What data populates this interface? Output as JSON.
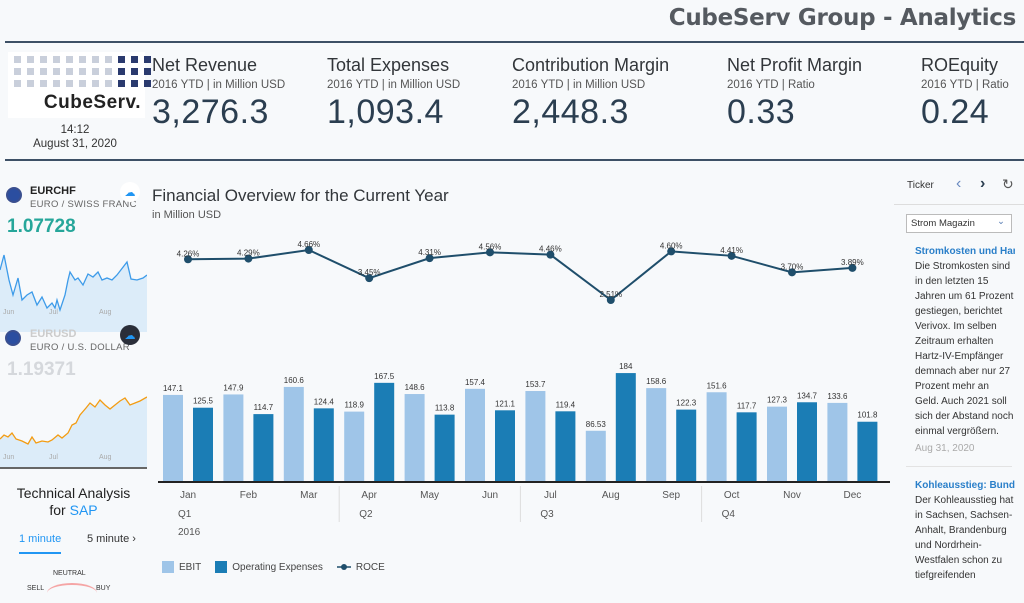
{
  "header": {
    "title": "CubeServ Group - Analytics"
  },
  "logo": {
    "text": "CubeServ."
  },
  "clock": {
    "time": "14:12",
    "date": "August 31, 2020"
  },
  "kpis": [
    {
      "title": "Net Revenue",
      "subtitle": "2016 YTD | in Million USD",
      "value": "3,276.3"
    },
    {
      "title": "Total Expenses",
      "subtitle": "2016 YTD | in Million USD",
      "value": "1,093.4"
    },
    {
      "title": "Contribution Margin",
      "subtitle": "2016 YTD | in Million USD",
      "value": "2,448.3"
    },
    {
      "title": "Net Profit Margin",
      "subtitle": "2016 YTD | Ratio",
      "value": "0.33"
    },
    {
      "title": "ROEquity",
      "subtitle": "2016 YTD | Ratio",
      "value": "0.24"
    }
  ],
  "fx": [
    {
      "code": "EURCHF",
      "name": "EURO / SWISS FRANC",
      "rate": "1.07728",
      "color": "#26a69a",
      "months": [
        "Jun",
        "Jul",
        "Aug"
      ]
    },
    {
      "code": "EURUSD",
      "name": "EURO / U.S. DOLLAR",
      "rate": "1.19371",
      "color": "#d5d8dc",
      "months": [
        "Jun",
        "Jul",
        "Aug"
      ]
    }
  ],
  "technical": {
    "title": "Technical Analysis",
    "for": "for",
    "symbol": "SAP",
    "tabs": [
      "1 minute",
      "5 minute"
    ],
    "gauge_label": "NEUTRAL",
    "sell": "SELL",
    "buy": "BUY"
  },
  "chart": {
    "title": "Financial Overview for the Current Year",
    "subtitle": "in Million USD"
  },
  "chart_data": {
    "type": "bar",
    "categories": [
      "Jan",
      "Feb",
      "Mar",
      "Apr",
      "May",
      "Jun",
      "Jul",
      "Aug",
      "Sep",
      "Oct",
      "Nov",
      "Dec"
    ],
    "quarters": [
      "Q1",
      "Q2",
      "Q3",
      "Q4"
    ],
    "year": "2016",
    "series": [
      {
        "name": "EBIT",
        "type": "bar",
        "color": "#9fc5e8",
        "values": [
          147.1,
          147.9,
          160.6,
          118.9,
          148.6,
          157.4,
          153.7,
          86.53,
          158.6,
          151.6,
          127.3,
          133.6
        ]
      },
      {
        "name": "Operating Expenses",
        "type": "bar",
        "color": "#1b7db5",
        "values": [
          125.5,
          114.7,
          124.4,
          167.5,
          113.8,
          121.1,
          119.4,
          184,
          122.3,
          117.7,
          134.7,
          101.8
        ]
      },
      {
        "name": "ROCE",
        "type": "line",
        "color": "#1f4e6b",
        "values": [
          4.26,
          4.29,
          4.66,
          3.45,
          4.31,
          4.56,
          4.46,
          2.51,
          4.6,
          4.41,
          3.7,
          3.89
        ],
        "labels": [
          "4.26%",
          "4.29%",
          "4.66%",
          "3.45%",
          "4.31%",
          "4.56%",
          "4.46%",
          "2.51%",
          "4.60%",
          "4.41%",
          "3.70%",
          "3.89%"
        ]
      }
    ],
    "legend": "bottom-left",
    "grid": false
  },
  "ticker": {
    "label": "Ticker",
    "source": "Strom Magazin",
    "items": [
      {
        "headline": "Stromkosten und Hartz-IV",
        "body": "Die Stromkosten sind in den letzten 15 Jahren um 61 Prozent gestiegen, berichtet Verivox. Im selben Zeitraum erhalten Hartz-IV-Empfänger demnach aber nur 27 Prozent mehr an Geld. Auch 2021 soll sich der Abstand noch einmal vergrößern.",
        "date": "Aug 31, 2020"
      },
      {
        "headline": "Kohleausstieg: Bund und",
        "body": "Der Kohleausstieg hat in Sachsen, Sachsen-Anhalt, Brandenburg und Nordrhein-Westfalen schon zu tiefgreifenden",
        "date": ""
      }
    ]
  }
}
